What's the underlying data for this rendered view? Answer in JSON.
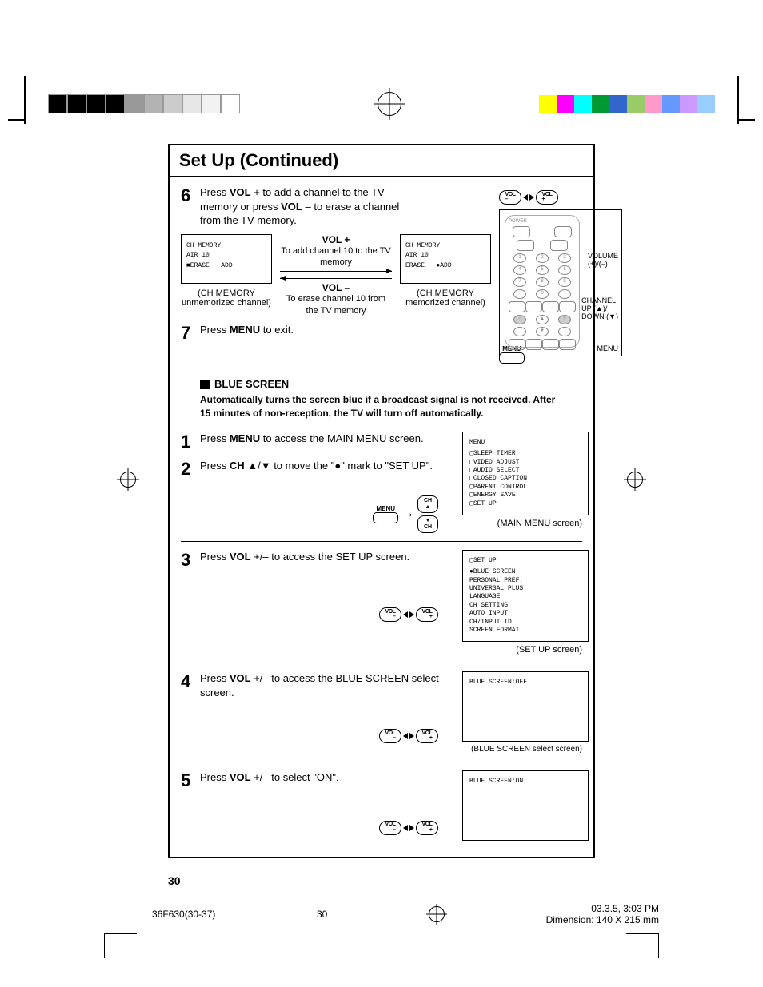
{
  "print_bars": {
    "left_colors": [
      "#000000",
      "#000000",
      "#000000",
      "#000000",
      "#999999",
      "#b3b3b3",
      "#cccccc",
      "#e6e6e6",
      "#f2f2f2",
      "#ffffff"
    ],
    "right_colors": [
      "#ffff00",
      "#ff00ff",
      "#00ffff",
      "#009933",
      "#3366cc",
      "#99cc66",
      "#ff99cc",
      "#6699ff",
      "#cc99ff",
      "#99ccff"
    ]
  },
  "title": "Set Up (Continued)",
  "step6": {
    "num": "6",
    "pre": "Press ",
    "b1": "VOL",
    "mid1": " + to add a channel to the TV memory or press ",
    "b2": "VOL",
    "mid2": " – to erase a channel from the TV memory.",
    "vol_plus_hdr": "VOL +",
    "vol_plus_desc": "To add channel 10 to the TV memory",
    "vol_minus_hdr": "VOL –",
    "vol_minus_desc": "To erase channel 10 from the TV memory",
    "tv_left_line1": "CH MEMORY",
    "tv_left_line2": "AIR 10",
    "tv_left_line3a": "■ERASE",
    "tv_left_line3b": "ADD",
    "tv_left_cap1": "(CH MEMORY",
    "tv_left_cap2": "unmemorized channel)",
    "tv_right_line1": "CH MEMORY",
    "tv_right_line2": "AIR 10",
    "tv_right_line3a": "ERASE",
    "tv_right_line3b": "●ADD",
    "tv_right_cap1": "(CH MEMORY",
    "tv_right_cap2": "memorized channel)"
  },
  "step7": {
    "num": "7",
    "pre": "Press ",
    "b1": "MENU",
    "post": " to exit."
  },
  "remote": {
    "label_volume": "VOLUME",
    "label_vol_plusminus": "(+)/(–)",
    "label_channel": "CHANNEL",
    "label_ch_up": "UP (▲)/",
    "label_ch_down": "DOWN (▼)",
    "label_menu": "MENU",
    "power": "POWER"
  },
  "blue_screen": {
    "hdr": "BLUE SCREEN",
    "desc": "Automatically turns the screen blue if a broadcast signal is not received. After 15 minutes of non-reception, the TV will turn off automatically."
  },
  "step1": {
    "num": "1",
    "pre": "Press ",
    "b1": "MENU",
    "post": " to access the MAIN MENU screen."
  },
  "step2": {
    "num": "2",
    "pre": "Press ",
    "b1": "CH",
    "mid1": " ▲/▼ to move the \"●\" mark to \"SET UP\"."
  },
  "main_menu": {
    "title": "MENU",
    "items": [
      "SLEEP TIMER",
      "VIDEO ADJUST",
      "AUDIO SELECT",
      "CLOSED CAPTION",
      "PARENT CONTROL",
      "ENERGY SAVE",
      "SET UP"
    ],
    "caption": "(MAIN MENU screen)"
  },
  "step3": {
    "num": "3",
    "pre": "Press ",
    "b1": "VOL",
    "post": " +/– to access the SET UP screen."
  },
  "setup_menu": {
    "title": "SET UP",
    "items": [
      "BLUE SCREEN",
      "PERSONAL PREF.",
      "UNIVERSAL PLUS",
      "LANGUAGE",
      "CH SETTING",
      "AUTO INPUT",
      "CH/INPUT ID",
      "SCREEN FORMAT"
    ],
    "caption": "(SET UP screen)"
  },
  "step4": {
    "num": "4",
    "pre": "Press ",
    "b1": "VOL",
    "post": " +/– to access the BLUE SCREEN select screen."
  },
  "blue_off": {
    "text": "BLUE SCREEN:OFF",
    "caption": "(BLUE SCREEN select screen)"
  },
  "step5": {
    "num": "5",
    "pre": "Press ",
    "b1": "VOL",
    "post": " +/– to select \"ON\"."
  },
  "blue_on": {
    "text": "BLUE SCREEN:ON"
  },
  "vol_pill_minus": "VOL\n–",
  "vol_pill_plus": "VOL\n+",
  "menu_label": "MENU",
  "ch_up": "CH\n▲",
  "ch_down": "▼\nCH",
  "arrow": "→",
  "page_number": "30",
  "footer": {
    "doc": "36F630(30-37)",
    "page": "30",
    "date": "03.3.5, 3:03 PM",
    "dim": "Dimension: 140 X 215 mm"
  }
}
